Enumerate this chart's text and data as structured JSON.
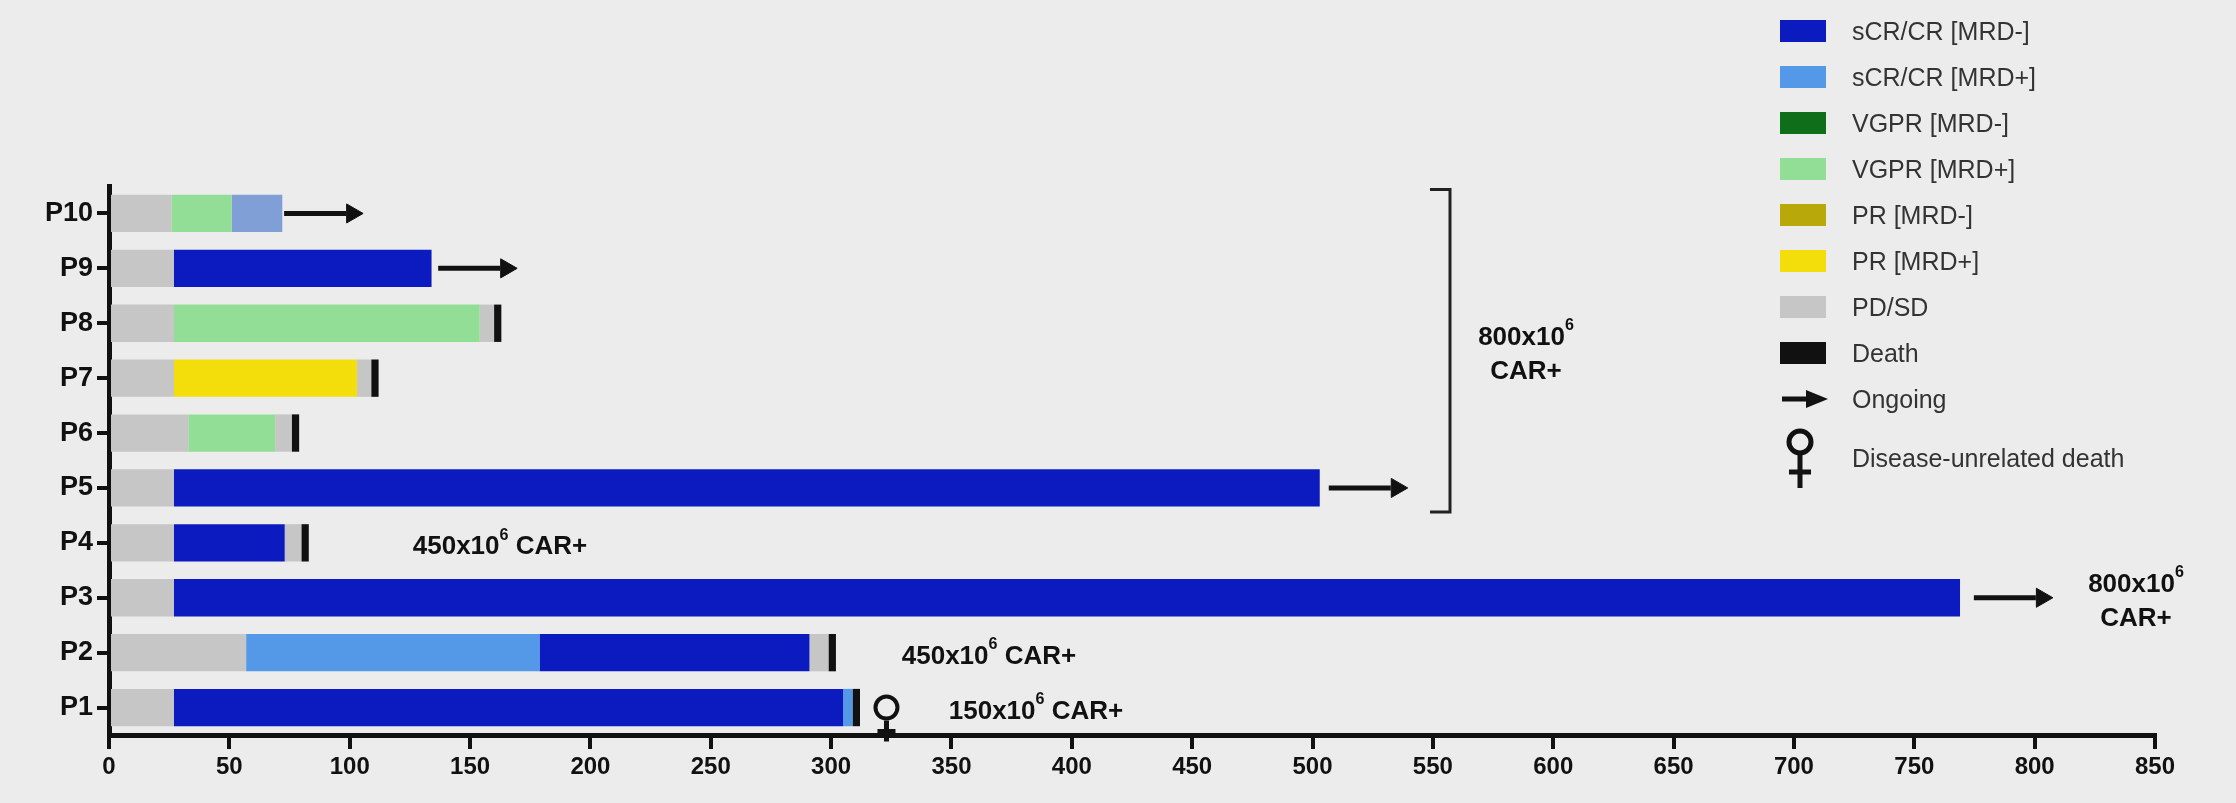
{
  "chart_data": {
    "type": "bar",
    "orientation": "horizontal",
    "categories": [
      "P10",
      "P9",
      "P8",
      "P7",
      "P6",
      "P5",
      "P4",
      "P3",
      "P2",
      "P1"
    ],
    "series": [
      {
        "name": "sCR/CR [MRD-]",
        "color": "#0c1bbf",
        "values": [
          null,
          107,
          null,
          null,
          null,
          476,
          46,
          742,
          112,
          278
        ],
        "base": [
          null,
          27,
          null,
          null,
          null,
          27,
          27,
          27,
          179,
          27
        ]
      },
      {
        "name": "sCR/CR [MRD+]",
        "color": "#5499e8",
        "values": [
          null,
          null,
          null,
          null,
          null,
          null,
          null,
          null,
          122,
          null
        ],
        "base": [
          null,
          null,
          null,
          null,
          null,
          null,
          null,
          null,
          57,
          null
        ]
      },
      {
        "name": "VGPR [MRD-]",
        "color": "#0f6e19",
        "values": [
          null,
          null,
          null,
          null,
          null,
          null,
          null,
          null,
          null,
          null
        ],
        "base": [
          null,
          null,
          null,
          null,
          null,
          null,
          null,
          null,
          null,
          null
        ]
      },
      {
        "name": "VGPR [MRD+]",
        "color": "#93de96",
        "values": [
          25,
          null,
          127,
          null,
          36,
          null,
          null,
          null,
          null,
          null
        ],
        "base": [
          26,
          null,
          27,
          null,
          33,
          null,
          null,
          null,
          null,
          null
        ]
      },
      {
        "name": "PR [MRD-]",
        "color": "#b9a80a",
        "values": [
          null,
          null,
          null,
          null,
          null,
          null,
          null,
          null,
          null,
          null
        ],
        "base": [
          null,
          null,
          null,
          null,
          null,
          null,
          null,
          null,
          null,
          null
        ]
      },
      {
        "name": "PR [MRD+]",
        "color": "#f3dd0a",
        "values": [
          null,
          null,
          null,
          76,
          null,
          null,
          null,
          null,
          null,
          null
        ],
        "base": [
          null,
          null,
          null,
          27,
          null,
          null,
          null,
          null,
          null,
          null
        ]
      },
      {
        "name": "PD/SD",
        "color": "#c6c6c6",
        "values": [
          26,
          27,
          27,
          27,
          33,
          27,
          27,
          27,
          57,
          27
        ],
        "base": [
          0,
          0,
          0,
          0,
          0,
          0,
          0,
          0,
          0,
          0
        ]
      },
      {
        "name": "Death",
        "color": "#111111",
        "values": [
          null,
          null,
          3,
          3,
          3,
          null,
          3,
          null,
          3,
          3
        ],
        "base": [
          null,
          null,
          160,
          109,
          76,
          null,
          80,
          null,
          299,
          309
        ]
      },
      {
        "name": "Ongoing",
        "type": "scatter",
        "marker": "triangle",
        "color": "#111111",
        "values": [
          101,
          165,
          null,
          null,
          null,
          535,
          null,
          803,
          null,
          null
        ]
      },
      {
        "name": "Disease-unrelated death",
        "type": "scatter",
        "marker": "circle",
        "color": "#111111",
        "values": [
          null,
          null,
          null,
          null,
          null,
          null,
          null,
          null,
          null,
          323
        ]
      },
      {
        "colors": [
          "#7f9fd6",
          null,
          null,
          null,
          null,
          null,
          null,
          null,
          null,
          "#5499e8"
        ],
        "values": [
          21,
          null,
          null,
          null,
          null,
          null,
          null,
          null,
          null,
          4
        ],
        "base": [
          51,
          null,
          null,
          null,
          null,
          null,
          null,
          null,
          null,
          305
        ]
      },
      {
        "color": "#c6c6c6",
        "values": [
          null,
          null,
          6,
          6,
          7,
          null,
          7,
          null,
          8,
          null
        ],
        "base": [
          null,
          null,
          154,
          103,
          69,
          null,
          73,
          null,
          291,
          null
        ]
      }
    ],
    "xlim": [
      0,
      850
    ],
    "xticks": [
      0,
      50,
      100,
      150,
      200,
      250,
      300,
      350,
      400,
      450,
      500,
      550,
      600,
      650,
      700,
      750,
      800,
      850
    ],
    "grid": false,
    "legend": "top right",
    "annotations": [
      "450x10$^{6}$ CAR+",
      "450x10$^{6}$ CAR+",
      "150x10$^{6}$ CAR+",
      "800x10$^{6}$ CAR+",
      "800x10$^{6}$ CAR+"
    ]
  }
}
